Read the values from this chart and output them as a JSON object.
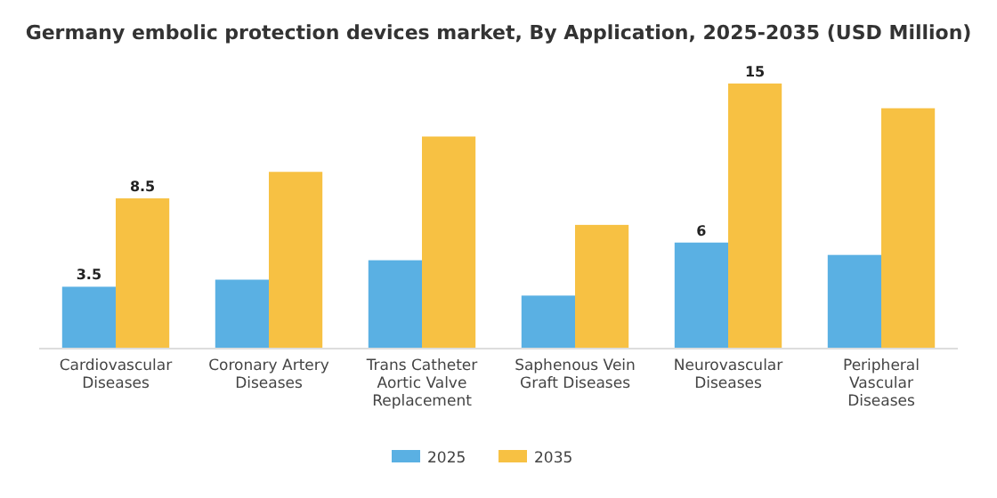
{
  "chart_data": {
    "type": "bar",
    "title": "Germany embolic protection devices market, By Application, 2025-2035 (USD Million)",
    "categories": [
      "Cardiovascular Diseases",
      "Coronary Artery Diseases",
      "Trans Catheter Aortic Valve Replacement",
      "Saphenous Vein Graft Diseases",
      "Neurovascular Diseases",
      "Peripheral Vascular Diseases"
    ],
    "series": [
      {
        "name": "2025",
        "color": "#5ab0e3",
        "values": [
          3.5,
          3.9,
          5.0,
          3.0,
          6,
          5.3
        ],
        "value_labels": [
          "3.5",
          null,
          null,
          null,
          "6",
          null
        ]
      },
      {
        "name": "2035",
        "color": "#f7c143",
        "values": [
          8.5,
          10.0,
          12.0,
          7.0,
          15,
          13.6
        ],
        "value_labels": [
          "8.5",
          null,
          null,
          null,
          "15",
          null
        ]
      }
    ],
    "legend": "bottom",
    "grid": false
  }
}
